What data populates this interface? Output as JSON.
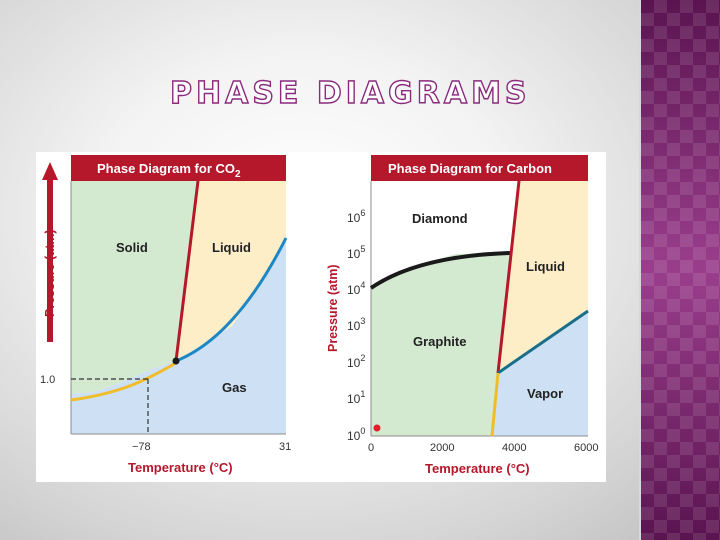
{
  "slide": {
    "title": "PHASE DIAGRAMS",
    "accent_color": "#8a2b7d",
    "side_strip_color": "#6e1f63"
  },
  "co2_diagram": {
    "header": "Phase Diagram for CO",
    "header_subscript": "2",
    "header_color": "#b5172b",
    "y_axis_label": "Pressure (atm)",
    "x_axis_label": "Temperature (°C)",
    "regions": {
      "solid": "Solid",
      "liquid": "Liquid",
      "gas": "Gas"
    },
    "y_tick": "1.0",
    "x_ticks": [
      "−78",
      "31"
    ],
    "colors": {
      "solid": "#d3ead0",
      "liquid": "#fdeec8",
      "gas": "#cde0f4",
      "sublimation_curve": "#f0bd2a",
      "vaporization_curve": "#1d87c4",
      "melting_curve": "#b5172b"
    }
  },
  "carbon_diagram": {
    "header": "Phase Diagram for Carbon",
    "header_color": "#b5172b",
    "y_axis_label": "Pressure (atm)",
    "x_axis_label": "Temperature (°C)",
    "regions": {
      "diamond": "Diamond",
      "liquid": "Liquid",
      "graphite": "Graphite",
      "vapor": "Vapor"
    },
    "y_ticks": [
      {
        "base": "10",
        "exp": "0"
      },
      {
        "base": "10",
        "exp": "1"
      },
      {
        "base": "10",
        "exp": "2"
      },
      {
        "base": "10",
        "exp": "3"
      },
      {
        "base": "10",
        "exp": "4"
      },
      {
        "base": "10",
        "exp": "5"
      },
      {
        "base": "10",
        "exp": "6"
      }
    ],
    "x_ticks": [
      "0",
      "2000",
      "4000",
      "6000"
    ],
    "colors": {
      "diamond": "#ffffff",
      "liquid": "#fdeec8",
      "graphite": "#d3ead0",
      "vapor": "#cde0f4",
      "diamond_graphite_curve": "#1a1a1a",
      "vaporization_curve": "#1b6e8a"
    }
  }
}
